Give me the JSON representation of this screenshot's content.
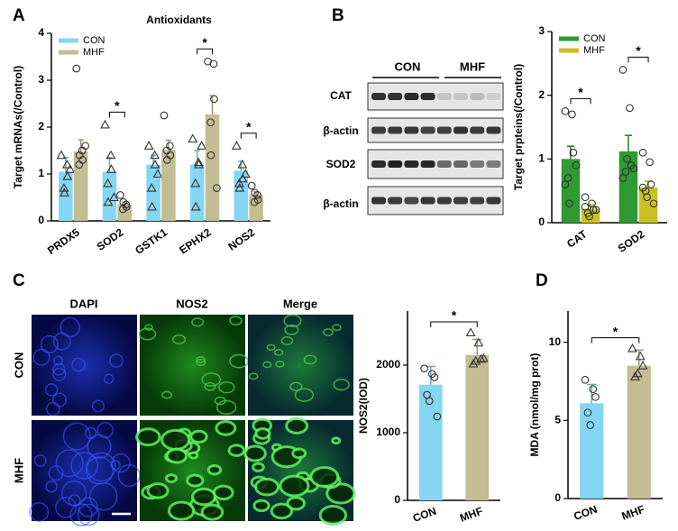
{
  "panels": [
    "A",
    "B",
    "C",
    "D"
  ],
  "blot": {
    "groups": [
      "CON",
      "MHF"
    ],
    "rows": [
      "CAT",
      "β-actin",
      "SOD2",
      "β-actin"
    ]
  },
  "micrographs": {
    "columns": [
      "DAPI",
      "NOS2",
      "Merge"
    ],
    "rows": [
      "CON",
      "MHF"
    ]
  },
  "chart_data": [
    {
      "type": "bar",
      "title": "Antioxidants",
      "ylabel": "Target mRNAs(/Control)",
      "categories": [
        "PRDX5",
        "SOD2",
        "GSTK1",
        "EPHX2",
        "NOS2"
      ],
      "series": [
        {
          "name": "CON",
          "color": "#85d6f2",
          "marker": "triangle",
          "values": [
            1.05,
            1.05,
            1.2,
            1.2,
            1.07
          ],
          "errors": [
            0.3,
            0.3,
            0.2,
            0.3,
            0.2
          ],
          "points": [
            [
              1.4,
              1.2,
              0.95,
              0.7,
              0.6,
              1.1
            ],
            [
              2.05,
              1.4,
              1.1,
              0.8,
              0.4,
              0.5
            ],
            [
              1.6,
              1.4,
              1.2,
              0.7,
              0.3,
              1.0
            ],
            [
              1.75,
              1.25,
              1.2,
              0.8,
              0.3,
              1.6
            ],
            [
              1.6,
              1.2,
              0.9,
              0.8,
              0.7,
              1.0
            ]
          ]
        },
        {
          "name": "MHF",
          "color": "#c2bd92",
          "marker": "circle",
          "values": [
            1.48,
            0.35,
            1.52,
            2.27,
            0.55
          ],
          "errors": [
            0.25,
            0.05,
            0.2,
            0.4,
            0.07
          ],
          "points": [
            [
              3.25,
              1.5,
              1.3,
              1.2,
              1.4,
              1.6
            ],
            [
              0.55,
              0.35,
              0.3,
              0.25,
              0.4
            ],
            [
              2.25,
              1.6,
              1.4,
              1.5,
              1.3
            ],
            [
              3.4,
              3.35,
              2.6,
              2.1,
              1.4,
              0.7
            ],
            [
              0.75,
              0.55,
              0.45,
              0.4,
              0.6
            ]
          ]
        }
      ],
      "significance": [
        null,
        "*",
        null,
        "*",
        "*"
      ],
      "ylim": [
        0,
        4
      ],
      "yticks": [
        0,
        1,
        2,
        3,
        4
      ],
      "legend": "upper left"
    },
    {
      "type": "bar",
      "ylabel": "Target prpteins(/Control)",
      "categories": [
        "CAT",
        "SOD2"
      ],
      "series": [
        {
          "name": "CON",
          "color": "#2f9a2f",
          "marker": "circle",
          "values": [
            1.0,
            1.12
          ],
          "errors": [
            0.2,
            0.25
          ],
          "points": [
            [
              1.75,
              1.7,
              1.1,
              0.7,
              0.3,
              0.9,
              0.6
            ],
            [
              2.4,
              1.8,
              0.9,
              0.8,
              1.0,
              0.85,
              0.7
            ]
          ]
        },
        {
          "name": "MHF",
          "color": "#c9c022",
          "marker": "circle",
          "values": [
            0.22,
            0.55
          ],
          "errors": [
            0.06,
            0.1
          ],
          "points": [
            [
              0.4,
              0.3,
              0.2,
              0.15,
              0.1,
              0.2,
              0.25
            ],
            [
              1.1,
              0.95,
              0.6,
              0.5,
              0.4,
              0.3,
              0.55
            ]
          ]
        }
      ],
      "significance": [
        "*",
        "*"
      ],
      "ylim": [
        0,
        3
      ],
      "yticks": [
        0,
        1,
        2,
        3
      ],
      "legend": "upper left"
    },
    {
      "type": "bar",
      "ylabel": "NOS2(IOD)",
      "categories": [
        "CON",
        "MHF"
      ],
      "colors": [
        "#85d6f2",
        "#c2bd92"
      ],
      "markers": [
        "circle",
        "triangle"
      ],
      "values": [
        1710,
        2150
      ],
      "errors": [
        270,
        230
      ],
      "points": [
        [
          1950,
          1870,
          1820,
          1560,
          1470,
          1240
        ],
        [
          2480,
          2330,
          2090,
          2020,
          2060,
          2100
        ]
      ],
      "significance": "*",
      "ylim": [
        0,
        2800
      ],
      "yticks": [
        0,
        1000,
        2000
      ]
    },
    {
      "type": "bar",
      "ylabel": "MDA (nmol/mg prot)",
      "categories": [
        "CON",
        "MHF"
      ],
      "colors": [
        "#85d6f2",
        "#c2bd92"
      ],
      "markers": [
        "circle",
        "triangle"
      ],
      "values": [
        6.1,
        8.5
      ],
      "errors": [
        1.2,
        1.0
      ],
      "points": [
        [
          7.6,
          7.0,
          6.5,
          5.5,
          4.7
        ],
        [
          9.6,
          9.1,
          8.5,
          7.8,
          8.0
        ]
      ],
      "significance": "*",
      "ylim": [
        0,
        12
      ],
      "yticks": [
        0,
        5,
        10
      ]
    }
  ]
}
